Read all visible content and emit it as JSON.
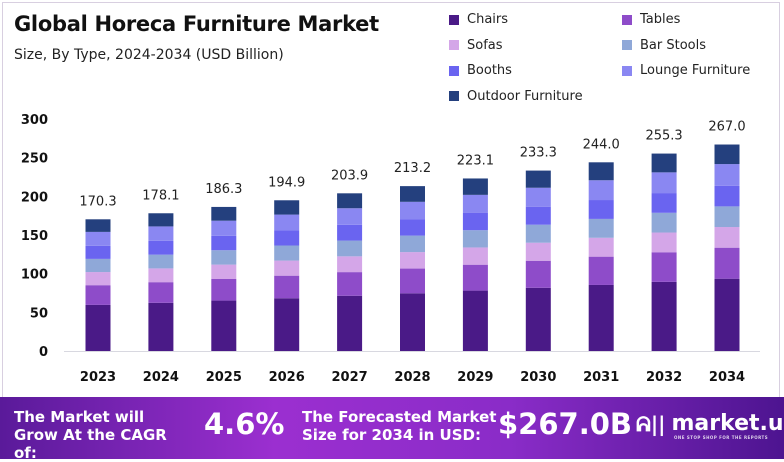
{
  "chart_data": {
    "type": "bar",
    "stacked": true,
    "title": "Global Horeca Furniture Market",
    "subtitle": "Size, By Type, 2024-2034 (USD Billion)",
    "categories": [
      "2023",
      "2024",
      "2025",
      "2026",
      "2027",
      "2028",
      "2029",
      "2030",
      "2031",
      "2032",
      "2034"
    ],
    "totals": [
      "170.3",
      "178.1",
      "186.3",
      "194.9",
      "203.9",
      "213.2",
      "223.1",
      "233.3",
      "244.0",
      "255.3",
      "267.0"
    ],
    "ylim": [
      0,
      300
    ],
    "yticks": [
      "0",
      "50",
      "100",
      "150",
      "200",
      "250",
      "300"
    ],
    "grid": false,
    "legend_position": "top-right",
    "series": [
      {
        "name": "Chairs",
        "color": "#4a1a87",
        "values": [
          59.6,
          62.3,
          65.2,
          68.2,
          71.4,
          74.6,
          78.1,
          81.7,
          85.4,
          89.4,
          93.5
        ]
      },
      {
        "name": "Tables",
        "color": "#8e4cc9",
        "values": [
          25.5,
          26.7,
          27.9,
          29.2,
          30.6,
          32.0,
          33.5,
          35.0,
          36.6,
          38.3,
          40.1
        ]
      },
      {
        "name": "Sofas",
        "color": "#d4a6e8",
        "values": [
          17.0,
          17.8,
          18.6,
          19.5,
          20.4,
          21.3,
          22.3,
          23.3,
          24.4,
          25.5,
          26.7
        ]
      },
      {
        "name": "Bar Stools",
        "color": "#8fa8d8",
        "values": [
          17.0,
          17.8,
          18.6,
          19.5,
          20.4,
          21.3,
          22.3,
          23.3,
          24.4,
          25.5,
          26.7
        ]
      },
      {
        "name": "Booths",
        "color": "#6a64f0",
        "values": [
          17.0,
          17.8,
          18.6,
          19.5,
          20.4,
          21.3,
          22.3,
          23.3,
          24.4,
          25.5,
          26.7
        ]
      },
      {
        "name": "Lounge Furniture",
        "color": "#8a87f2",
        "values": [
          17.9,
          18.7,
          19.6,
          20.5,
          21.4,
          22.4,
          23.4,
          24.5,
          25.6,
          26.8,
          28.0
        ]
      },
      {
        "name": "Outdoor Furniture",
        "color": "#24407e",
        "values": [
          16.3,
          17.0,
          17.8,
          18.5,
          19.3,
          20.3,
          21.2,
          22.2,
          23.2,
          24.3,
          25.3
        ]
      }
    ]
  },
  "banner": {
    "cagr_text": "The Market will Grow At the CAGR of:",
    "cagr_value": "4.6%",
    "forecast_text": "The Forecasted Market Size for 2034 in USD:",
    "forecast_value": "$267.0B",
    "logo": "market.us",
    "logo_tagline": "ONE STOP SHOP FOR THE REPORTS"
  }
}
